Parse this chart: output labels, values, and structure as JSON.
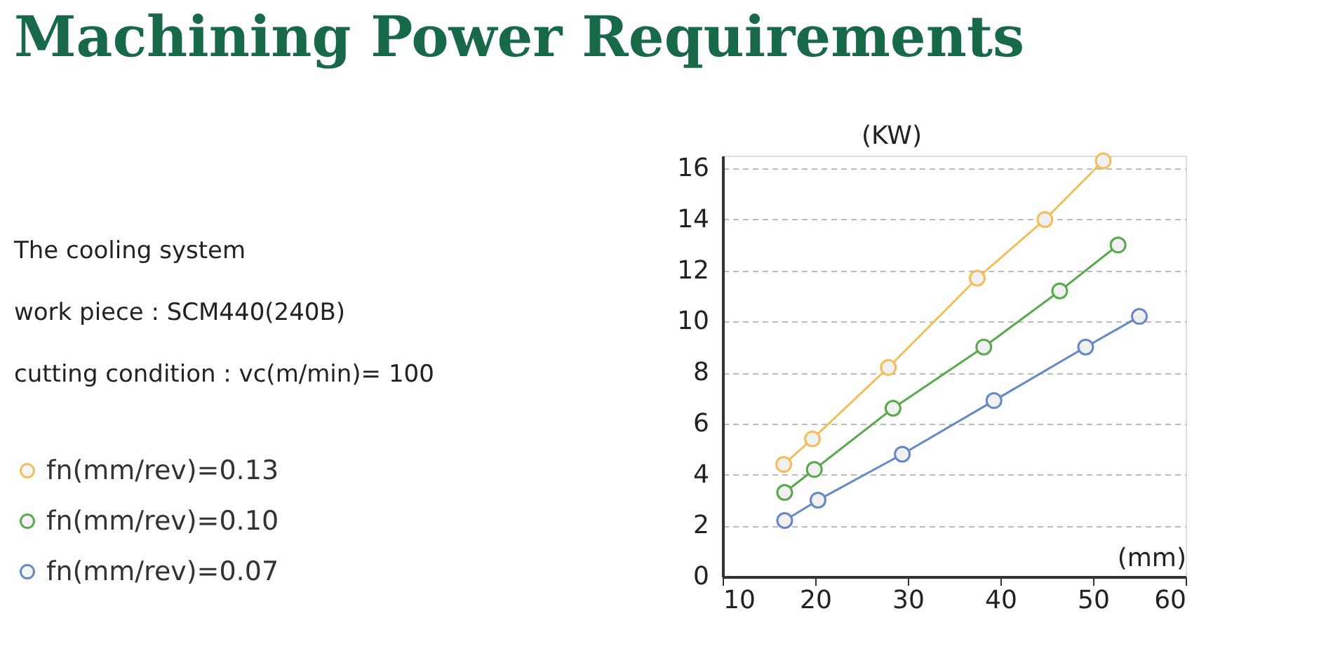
{
  "chart_data": {
    "type": "line",
    "title": "Machining Power Requirements",
    "annotations": [
      "The cooling system",
      "work piece : SCM440(240B)",
      "cutting condition : vc(m/min)= 100"
    ],
    "xlabel": "(mm)",
    "ylabel": "(KW)",
    "xlim": [
      10,
      60
    ],
    "xticks": [
      10,
      20,
      30,
      40,
      50,
      60
    ],
    "ylim": [
      0,
      16.5
    ],
    "yticks": [
      0,
      2,
      4,
      6,
      8,
      10,
      12,
      14,
      16
    ],
    "grid": "y",
    "legend": "left",
    "marker": "circle",
    "line_style": "solid",
    "series": [
      {
        "name": "fn(mm/rev)=0.13",
        "color": "#f2bd5a",
        "x": [
          16.6,
          19.7,
          27.9,
          37.5,
          44.8,
          51.1
        ],
        "values": [
          4.4,
          5.4,
          8.2,
          11.7,
          14.0,
          16.3
        ]
      },
      {
        "name": "fn(mm/rev)=0.10",
        "color": "#5aa84e",
        "x": [
          16.7,
          19.9,
          28.4,
          38.2,
          46.4,
          52.7
        ],
        "values": [
          3.3,
          4.2,
          6.6,
          9.0,
          11.2,
          13.0
        ]
      },
      {
        "name": "fn(mm/rev)=0.07",
        "color": "#6688c4",
        "x": [
          16.7,
          20.3,
          29.4,
          39.3,
          49.2,
          55.0
        ],
        "values": [
          2.2,
          3.0,
          4.8,
          6.9,
          9.0,
          10.2
        ]
      }
    ]
  }
}
